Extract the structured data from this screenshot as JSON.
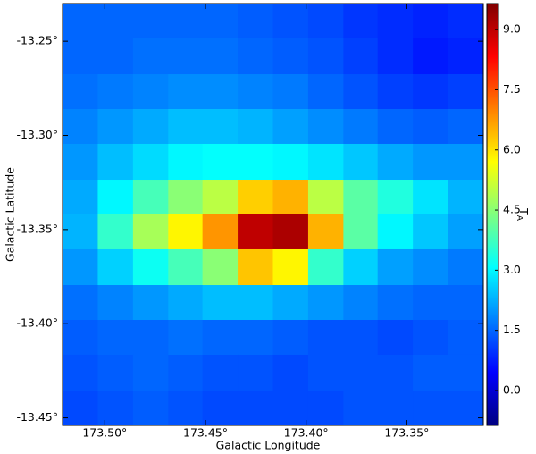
{
  "chart_data": {
    "type": "heatmap",
    "xlabel": "Galactic Longitude",
    "ylabel": "Galactic Latitude",
    "colorbar_label": {
      "text": "T",
      "subscript": "A"
    },
    "colormap": "jet",
    "x": [
      173.512,
      173.495,
      173.477,
      173.46,
      173.443,
      173.425,
      173.408,
      173.39,
      173.373,
      173.356,
      173.338,
      173.321
    ],
    "y": [
      -13.239,
      -13.258,
      -13.277,
      -13.295,
      -13.314,
      -13.333,
      -13.351,
      -13.37,
      -13.389,
      -13.407,
      -13.426,
      -13.445
    ],
    "z": [
      [
        1.5,
        1.5,
        1.5,
        1.5,
        1.5,
        1.4,
        1.3,
        1.2,
        1.0,
        0.9,
        0.8,
        0.9
      ],
      [
        1.5,
        1.5,
        1.6,
        1.6,
        1.6,
        1.5,
        1.4,
        1.3,
        1.1,
        0.9,
        0.7,
        0.8
      ],
      [
        1.6,
        1.7,
        1.8,
        1.9,
        1.9,
        1.8,
        1.7,
        1.5,
        1.3,
        1.1,
        1.0,
        1.1
      ],
      [
        1.8,
        2.0,
        2.2,
        2.4,
        2.4,
        2.3,
        2.1,
        1.9,
        1.7,
        1.5,
        1.4,
        1.5
      ],
      [
        2.0,
        2.4,
        2.7,
        3.0,
        3.1,
        3.1,
        3.0,
        2.8,
        2.5,
        2.2,
        2.0,
        2.0
      ],
      [
        2.2,
        3.0,
        3.8,
        4.5,
        5.0,
        6.2,
        6.5,
        5.0,
        4.0,
        3.4,
        2.8,
        2.3
      ],
      [
        2.3,
        3.6,
        4.8,
        5.8,
        6.8,
        9.0,
        9.2,
        6.5,
        4.0,
        3.0,
        2.5,
        2.1
      ],
      [
        2.0,
        2.6,
        3.2,
        3.8,
        4.5,
        6.3,
        5.8,
        3.6,
        2.6,
        2.1,
        1.9,
        1.7
      ],
      [
        1.6,
        1.8,
        2.0,
        2.2,
        2.4,
        2.4,
        2.2,
        2.0,
        1.8,
        1.6,
        1.5,
        1.5
      ],
      [
        1.4,
        1.5,
        1.5,
        1.6,
        1.5,
        1.5,
        1.4,
        1.3,
        1.3,
        1.2,
        1.3,
        1.4
      ],
      [
        1.3,
        1.4,
        1.5,
        1.4,
        1.3,
        1.3,
        1.2,
        1.3,
        1.3,
        1.3,
        1.4,
        1.4
      ],
      [
        1.2,
        1.3,
        1.4,
        1.3,
        1.2,
        1.2,
        1.2,
        1.2,
        1.3,
        1.3,
        1.3,
        1.3
      ]
    ],
    "xlim": [
      173.521,
      173.312
    ],
    "ylim": [
      -13.454,
      -13.23
    ],
    "zlim": [
      -0.87,
      9.65
    ],
    "xticks": [
      {
        "value": 173.5,
        "label": "173.50°"
      },
      {
        "value": 173.45,
        "label": "173.45°"
      },
      {
        "value": 173.4,
        "label": "173.40°"
      },
      {
        "value": 173.35,
        "label": "173.35°"
      }
    ],
    "yticks": [
      {
        "value": -13.25,
        "label": "-13.25°"
      },
      {
        "value": -13.3,
        "label": "-13.30°"
      },
      {
        "value": -13.35,
        "label": "-13.35°"
      },
      {
        "value": -13.4,
        "label": "-13.40°"
      },
      {
        "value": -13.45,
        "label": "-13.45°"
      }
    ],
    "zticks": [
      {
        "value": 0,
        "label": "0.0"
      },
      1.5,
      {
        "value": 3,
        "label": "3.0"
      },
      4.5,
      {
        "value": 6,
        "label": "6.0"
      },
      7.5,
      {
        "value": 9,
        "label": "9.0"
      }
    ]
  }
}
